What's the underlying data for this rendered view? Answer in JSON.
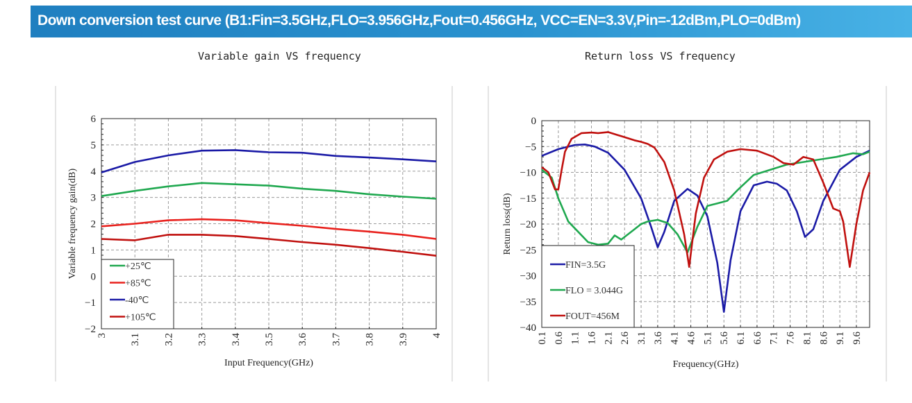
{
  "banner": {
    "title": "Down conversion test curve (B1:Fin=3.5GHz,FLO=3.956GHz,Fout=0.456GHz, VCC=EN=3.3V,Pin=-12dBm,PLO=0dBm)"
  },
  "colors": {
    "banner": "#2086c6",
    "green": "#1fa84f",
    "red": "#e8201c",
    "blue": "#1a1aa6",
    "darkred": "#c0100e"
  },
  "chart_data": [
    {
      "type": "line",
      "title": "Variable gain VS frequency",
      "xlabel": "Input Frequency(GHz)",
      "ylabel": "Variable frequency gain(dB)",
      "xlim": [
        3,
        4
      ],
      "ylim": [
        -2,
        6
      ],
      "grid": true,
      "legend_position": "bottom-left",
      "x_ticks": [
        "3",
        "3.1",
        "3.2",
        "3.3",
        "3.4",
        "3.5",
        "3.6",
        "3.7",
        "3.8",
        "3.9",
        "4"
      ],
      "y_ticks": [
        "-2",
        "-1",
        "0",
        "1",
        "2",
        "3",
        "4",
        "5",
        "6"
      ],
      "x": [
        3.0,
        3.1,
        3.2,
        3.3,
        3.4,
        3.5,
        3.6,
        3.7,
        3.8,
        3.9,
        4.0
      ],
      "series": [
        {
          "name": "+25℃",
          "color": "#1fa84f",
          "values": [
            3.05,
            3.25,
            3.42,
            3.55,
            3.5,
            3.45,
            3.33,
            3.25,
            3.12,
            3.03,
            2.95
          ]
        },
        {
          "name": "+85℃",
          "color": "#e8201c",
          "values": [
            1.9,
            2.0,
            2.13,
            2.17,
            2.13,
            2.02,
            1.92,
            1.8,
            1.7,
            1.58,
            1.42
          ]
        },
        {
          "name": "-40℃",
          "color": "#1a1aa6",
          "values": [
            3.95,
            4.35,
            4.6,
            4.78,
            4.8,
            4.72,
            4.7,
            4.58,
            4.52,
            4.45,
            4.37
          ]
        },
        {
          "name": "+105℃",
          "color": "#c0100e",
          "values": [
            1.42,
            1.37,
            1.58,
            1.58,
            1.53,
            1.42,
            1.3,
            1.2,
            1.07,
            0.93,
            0.78
          ]
        }
      ]
    },
    {
      "type": "line",
      "title": "Return loss VS frequency",
      "xlabel": "Frequency(GHz)",
      "ylabel": "Return loss(dB)",
      "xlim": [
        0.1,
        10
      ],
      "ylim": [
        -40,
        0
      ],
      "grid": true,
      "legend_position": "bottom-left",
      "x_ticks": [
        "0.1",
        "0.6",
        "1.1",
        "1.6",
        "2.1",
        "2.6",
        "3.1",
        "3.6",
        "4.1",
        "4.6",
        "5.1",
        "5.6",
        "6.1",
        "6.6",
        "7.1",
        "7.6",
        "8.1",
        "8.6",
        "9.1",
        "9.6"
      ],
      "y_ticks": [
        "0",
        "-5",
        "-10",
        "-15",
        "-20",
        "-25",
        "-30",
        "-35",
        "-40"
      ],
      "series": [
        {
          "name": "FIN=3.5G",
          "color": "#1a1aa6",
          "x": [
            0.1,
            0.6,
            1.1,
            1.4,
            1.7,
            2.1,
            2.6,
            3.1,
            3.4,
            3.6,
            3.8,
            4.1,
            4.5,
            4.8,
            5.1,
            5.4,
            5.6,
            5.8,
            6.1,
            6.5,
            6.9,
            7.2,
            7.5,
            7.8,
            8.05,
            8.3,
            8.6,
            9.1,
            9.6,
            10
          ],
          "y": [
            -6.8,
            -5.5,
            -4.7,
            -4.6,
            -5.0,
            -6.2,
            -9.5,
            -15,
            -20.5,
            -24.5,
            -21.5,
            -15.5,
            -13.2,
            -14.5,
            -18.5,
            -27.5,
            -37,
            -27,
            -17.5,
            -12.5,
            -11.8,
            -12.2,
            -13.5,
            -17.5,
            -22.5,
            -21,
            -15.5,
            -9.5,
            -7.0,
            -5.8
          ]
        },
        {
          "name": "FLO = 3.044G",
          "color": "#1fa84f",
          "x": [
            0.1,
            0.4,
            0.6,
            0.9,
            1.2,
            1.5,
            1.8,
            2.1,
            2.3,
            2.5,
            2.7,
            2.9,
            3.1,
            3.3,
            3.6,
            3.9,
            4.2,
            4.5,
            4.8,
            5.1,
            5.4,
            5.7,
            6.0,
            6.5,
            7.0,
            7.5,
            8.0,
            8.5,
            9.0,
            9.5,
            9.8,
            10
          ],
          "y": [
            -9.5,
            -11,
            -15,
            -19.5,
            -21.5,
            -23.5,
            -24,
            -23.8,
            -22.2,
            -23,
            -22,
            -21,
            -20,
            -19.5,
            -19.2,
            -19.8,
            -22,
            -25.5,
            -20.5,
            -16.5,
            -16,
            -15.5,
            -13.5,
            -10.5,
            -9.5,
            -8.5,
            -8,
            -7.5,
            -7,
            -6.3,
            -6.5,
            -6.0
          ]
        },
        {
          "name": "FOUT=456M",
          "color": "#c0100e",
          "x": [
            0.1,
            0.3,
            0.5,
            0.6,
            0.7,
            0.8,
            1.0,
            1.3,
            1.6,
            1.8,
            2.1,
            2.3,
            2.6,
            2.9,
            3.1,
            3.3,
            3.5,
            3.8,
            4.1,
            4.4,
            4.55,
            4.75,
            5.0,
            5.3,
            5.7,
            6.1,
            6.6,
            7.1,
            7.4,
            7.7,
            8.0,
            8.3,
            8.6,
            8.9,
            9.1,
            9.2,
            9.4,
            9.6,
            9.8,
            10
          ],
          "y": [
            -9,
            -10,
            -13.3,
            -13.3,
            -9.5,
            -6,
            -3.5,
            -2.4,
            -2.3,
            -2.4,
            -2.2,
            -2.6,
            -3.2,
            -3.8,
            -4.1,
            -4.5,
            -5.2,
            -8,
            -13.5,
            -22,
            -28.3,
            -18,
            -11,
            -7.5,
            -6,
            -5.5,
            -5.8,
            -7,
            -8.2,
            -8.5,
            -7,
            -7.5,
            -12,
            -17,
            -17.5,
            -19.5,
            -28.3,
            -20,
            -13.5,
            -10
          ]
        }
      ]
    }
  ]
}
